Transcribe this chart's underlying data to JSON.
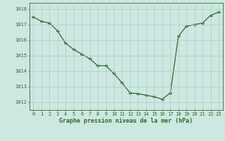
{
  "x": [
    0,
    1,
    2,
    3,
    4,
    5,
    6,
    7,
    8,
    9,
    10,
    11,
    12,
    13,
    14,
    15,
    16,
    17,
    18,
    19,
    20,
    21,
    22,
    23
  ],
  "y": [
    1017.5,
    1017.2,
    1017.1,
    1016.6,
    1015.8,
    1015.4,
    1015.1,
    1014.8,
    1014.35,
    1014.35,
    1013.85,
    1013.25,
    1012.6,
    1012.55,
    1012.45,
    1012.35,
    1012.2,
    1012.6,
    1016.25,
    1016.9,
    1017.0,
    1017.1,
    1017.6,
    1017.8
  ],
  "line_color": "#2d6a2d",
  "marker": "D",
  "marker_size": 2.2,
  "bg_color": "#cce8e0",
  "grid_color": "#aacccc",
  "ylabel_ticks": [
    1012,
    1013,
    1014,
    1015,
    1016,
    1017,
    1018
  ],
  "xlabel_ticks": [
    0,
    1,
    2,
    3,
    4,
    5,
    6,
    7,
    8,
    9,
    10,
    11,
    12,
    13,
    14,
    15,
    16,
    17,
    18,
    19,
    20,
    21,
    22,
    23
  ],
  "ylim": [
    1011.5,
    1018.4
  ],
  "xlim": [
    -0.5,
    23.5
  ],
  "xlabel": "Graphe pression niveau de la mer (hPa)",
  "xlabel_color": "#2d6a2d",
  "tick_color": "#2d6a2d",
  "axis_color": "#2d6a2d",
  "tick_fontsize": 5.0,
  "xlabel_fontsize": 6.0
}
